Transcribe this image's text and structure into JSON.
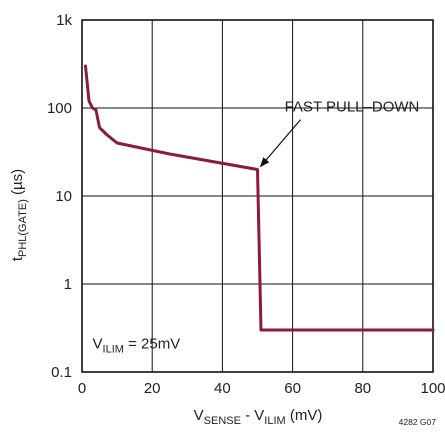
{
  "chart_data": {
    "type": "line",
    "xlim": [
      0,
      100
    ],
    "ylim": [
      0.1,
      1000
    ],
    "yscale": "log",
    "grid": true,
    "xticks": [
      0,
      20,
      40,
      60,
      80,
      100
    ],
    "xtick_labels": [
      "0",
      "20",
      "40",
      "60",
      "80",
      "100"
    ],
    "yticks": [
      0.1,
      1,
      10,
      100,
      1000
    ],
    "ytick_labels": [
      "0.1",
      "1",
      "10",
      "100",
      "1k"
    ],
    "ylabel": {
      "main": "t",
      "sub": "PHL(GATE)",
      "rest": " (µs)"
    },
    "xlabel": {
      "v1": "V",
      "sub1": "SENSE",
      "mid": " - V",
      "sub2": "ILIM",
      "rest": "  (mV)"
    },
    "series": [
      {
        "color": "#8b1a3c",
        "x": [
          1,
          2,
          3,
          4,
          5,
          7,
          10,
          25,
          50,
          51,
          100
        ],
        "y": [
          300,
          120,
          100,
          95,
          60,
          50,
          40,
          30,
          20,
          0.3,
          0.3
        ]
      }
    ],
    "annotations": {
      "fast_pull_down": "FAST PULL–DOWN",
      "fast_pull_down_point": [
        50,
        20
      ],
      "fast_pull_down_text_pos": [
        60,
        70
      ],
      "condition": {
        "v": "V",
        "sub": "ILIM",
        "rest": " = 25mV"
      }
    },
    "figure_id": "4282 G07"
  }
}
